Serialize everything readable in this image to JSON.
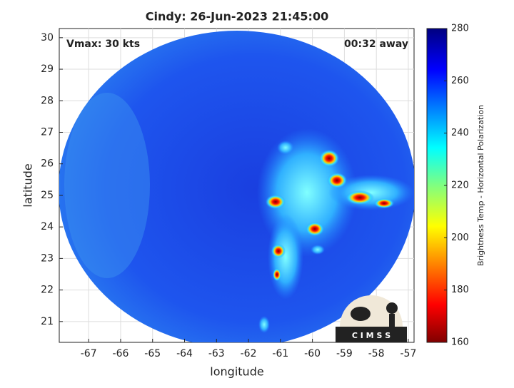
{
  "chart_data": {
    "type": "image",
    "title": "Cindy: 26-Jun-2023 21:45:00",
    "annotations": [
      "Vmax: 30 kts",
      "00:32 away"
    ],
    "x_label": "longitude",
    "y_label": "latitude",
    "xlim": [
      -67.92,
      -56.82
    ],
    "xticks": [
      -67,
      -66,
      -65,
      -64,
      -63,
      -62,
      -61,
      -60,
      -59,
      -58,
      -57
    ],
    "ylim": [
      20.34,
      30.29
    ],
    "yticks": [
      21,
      22,
      23,
      24,
      25,
      26,
      27,
      28,
      29,
      30
    ],
    "grid": true,
    "colorbar": {
      "label": "Brightness Temp - Horizontal Polarization",
      "clim": [
        160,
        280
      ],
      "ticks": [
        160,
        180,
        200,
        220,
        240,
        260,
        280
      ]
    },
    "logo_text": "C I M S S"
  }
}
